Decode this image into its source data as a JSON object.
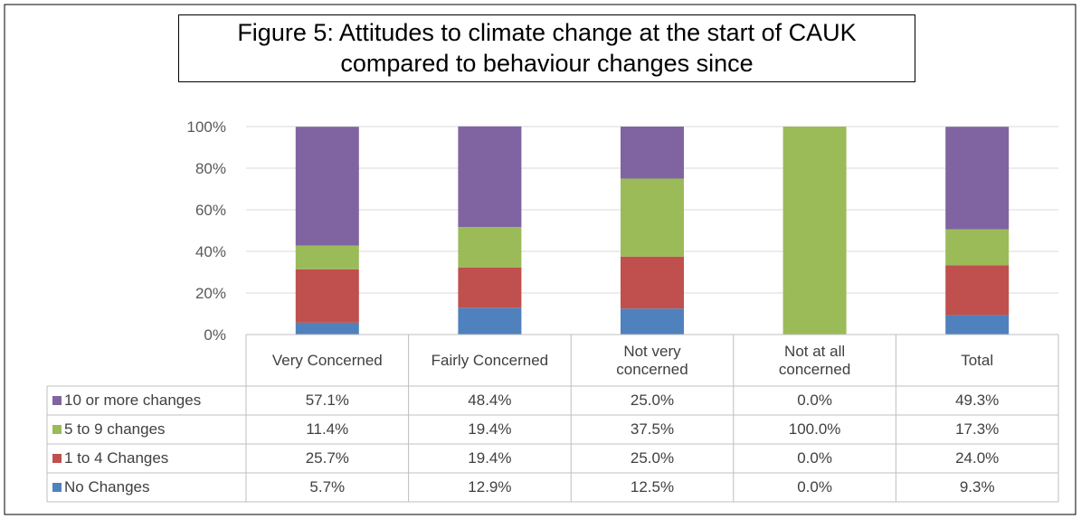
{
  "chart_data": {
    "type": "stacked_bar",
    "title": "Figure 5: Attitudes to climate change at the start of CAUK compared to behaviour changes since",
    "categories": [
      "Very Concerned",
      "Fairly Concerned",
      "Not very concerned",
      "Not at all concerned",
      "Total"
    ],
    "series": [
      {
        "name": "10 or more changes",
        "color": "#8064a2",
        "values": [
          57.1,
          48.4,
          25.0,
          0.0,
          49.3
        ],
        "value_labels": [
          "57.1%",
          "48.4%",
          "25.0%",
          "0.0%",
          "49.3%"
        ]
      },
      {
        "name": "5 to 9 changes",
        "color": "#9bbb59",
        "values": [
          11.4,
          19.4,
          37.5,
          100.0,
          17.3
        ],
        "value_labels": [
          "11.4%",
          "19.4%",
          "37.5%",
          "100.0%",
          "17.3%"
        ]
      },
      {
        "name": "1 to 4 Changes",
        "color": "#c0504d",
        "values": [
          25.7,
          19.4,
          25.0,
          0.0,
          24.0
        ],
        "value_labels": [
          "25.7%",
          "19.4%",
          "25.0%",
          "0.0%",
          "24.0%"
        ]
      },
      {
        "name": "No Changes",
        "color": "#4f81bd",
        "values": [
          5.7,
          12.9,
          12.5,
          0.0,
          9.3
        ],
        "value_labels": [
          "5.7%",
          "12.9%",
          "12.5%",
          "0.0%",
          "9.3%"
        ]
      }
    ],
    "ylim": [
      0,
      100
    ],
    "yticks": [
      {
        "value": 0,
        "label": "0%"
      },
      {
        "value": 20,
        "label": "20%"
      },
      {
        "value": 40,
        "label": "40%"
      },
      {
        "value": 60,
        "label": "60%"
      },
      {
        "value": 80,
        "label": "80%"
      },
      {
        "value": 100,
        "label": "100%"
      }
    ],
    "grid": true
  }
}
